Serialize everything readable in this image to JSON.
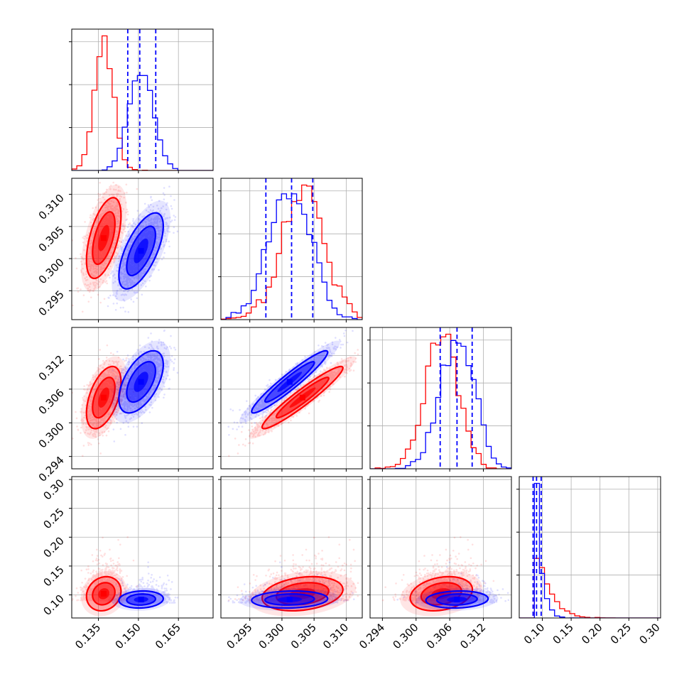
{
  "chart_data": {
    "type": "corner",
    "grid": true,
    "colors": {
      "red": "#ff0000",
      "blue": "#0000ff"
    },
    "parameters": [
      {
        "ticks": [
          "0.135",
          "0.150",
          "0.165"
        ],
        "tick_values": [
          0.135,
          0.15,
          0.165
        ],
        "range": [
          0.125,
          0.178
        ]
      },
      {
        "ticks": [
          "0.295",
          "0.300",
          "0.305",
          "0.310"
        ],
        "tick_values": [
          0.295,
          0.3,
          0.305,
          0.31
        ],
        "range": [
          0.2905,
          0.3125
        ]
      },
      {
        "ticks": [
          "0.294",
          "0.300",
          "0.306",
          "0.312"
        ],
        "tick_values": [
          0.294,
          0.3,
          0.306,
          0.312
        ],
        "range": [
          0.2918,
          0.317
        ]
      },
      {
        "ticks": [
          "0.10",
          "0.15",
          "0.20",
          "0.25",
          "0.30"
        ],
        "tick_values": [
          0.1,
          0.15,
          0.2,
          0.25,
          0.3
        ],
        "range": [
          0.06,
          0.305
        ]
      }
    ],
    "series": [
      {
        "color": "red",
        "means": [
          0.137,
          0.3032,
          0.3045,
          0.102
        ],
        "sds": [
          0.0035,
          0.0034,
          0.003,
          0.016
        ],
        "corr": [
          [
            1,
            0.55,
            0.5,
            0.15
          ],
          [
            0.55,
            1,
            0.95,
            0.25
          ],
          [
            0.5,
            0.95,
            1,
            0.25
          ],
          [
            0.15,
            0.25,
            0.25,
            1
          ]
        ],
        "quantiles": null
      },
      {
        "color": "blue",
        "means": [
          0.151,
          0.3012,
          0.3073,
          0.092
        ],
        "sds": [
          0.0045,
          0.0032,
          0.003,
          0.008
        ],
        "corr": [
          [
            1,
            0.65,
            0.55,
            0.1
          ],
          [
            0.65,
            1,
            0.95,
            0.1
          ],
          [
            0.55,
            0.95,
            1,
            0.1
          ],
          [
            0.1,
            0.1,
            0.1,
            1
          ]
        ],
        "quantiles": [
          [
            0.146,
            0.1505,
            0.1565
          ],
          [
            0.2975,
            0.3015,
            0.3048
          ],
          [
            0.3043,
            0.3073,
            0.31
          ],
          [
            0.084,
            0.09,
            0.098
          ]
        ]
      }
    ]
  }
}
